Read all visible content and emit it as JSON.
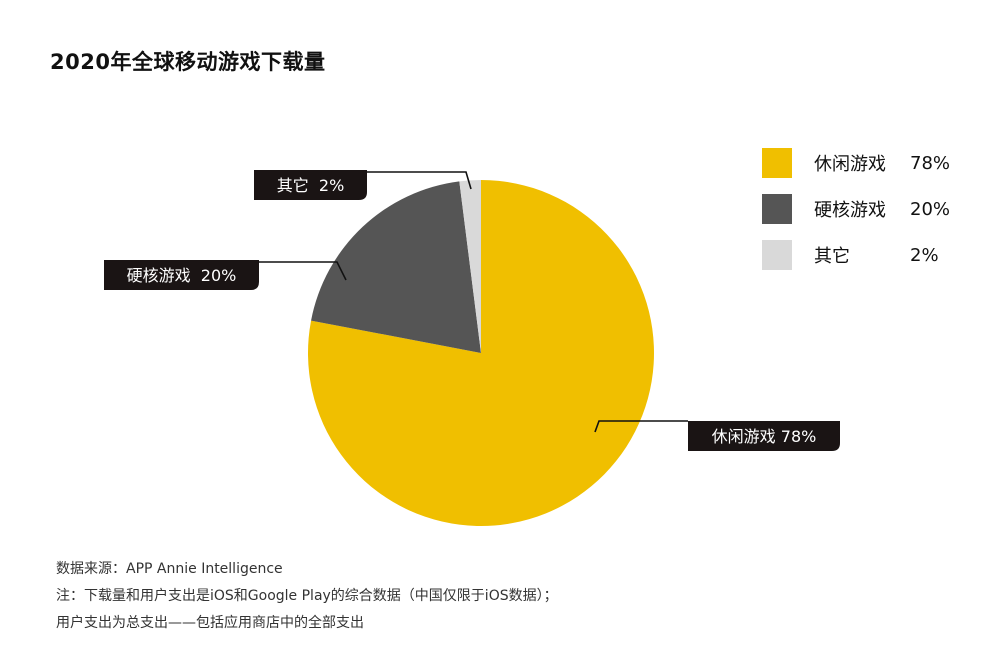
{
  "title": "2020年全球移动游戏下载量",
  "chart_data": {
    "type": "pie",
    "labels": [
      "休闲游戏",
      "硬核游戏",
      "其它"
    ],
    "values": [
      78,
      20,
      2
    ],
    "colors": [
      "#f0bf00",
      "#555555",
      "#d9d9d9"
    ],
    "callouts": [
      "休闲游戏 78%",
      "硬核游戏  20%",
      "其它  2%"
    ],
    "legend": [
      {
        "label": "休闲游戏",
        "pct": "78%"
      },
      {
        "label": "硬核游戏",
        "pct": "20%"
      },
      {
        "label": "其它",
        "pct": "2%"
      }
    ],
    "legend_position": "right"
  },
  "footer": {
    "source": "数据来源：APP Annie Intelligence",
    "note1": "注：下载量和用户支出是iOS和Google Play的综合数据（中国仅限于iOS数据）；",
    "note2": "用户支出为总支出——包括应用商店中的全部支出"
  }
}
